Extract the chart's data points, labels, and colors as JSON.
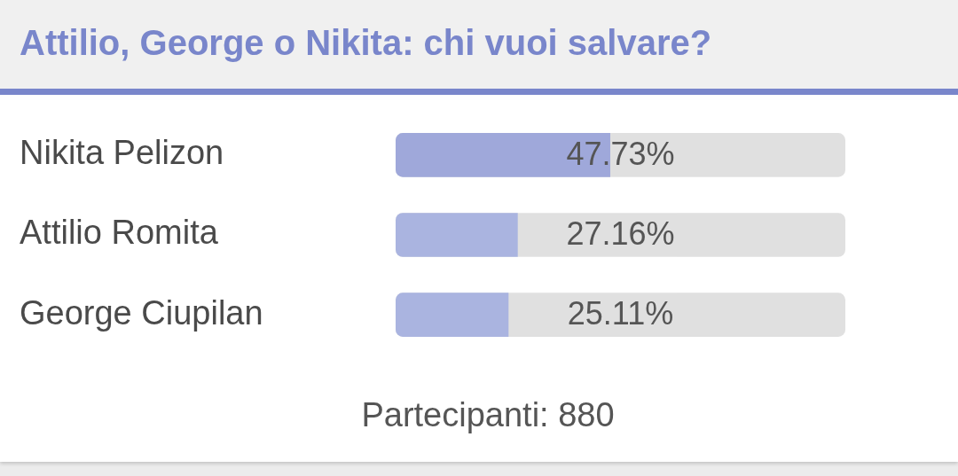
{
  "chart_data": {
    "type": "bar",
    "orientation": "horizontal",
    "title": "Attilio, George o Nikita: chi vuoi salvare?",
    "categories": [
      "Nikita Pelizon",
      "Attilio Romita",
      "George Ciupilan"
    ],
    "values": [
      47.73,
      27.16,
      25.11
    ],
    "colors": [
      "#9fa8da",
      "#aab4e0",
      "#aab4e0"
    ],
    "value_labels": [
      "47.73%",
      "27.16%",
      "25.11%"
    ],
    "xlim": [
      0,
      100
    ],
    "tick_labels": "y",
    "annotations": [
      "Partecipanti: 880"
    ]
  }
}
